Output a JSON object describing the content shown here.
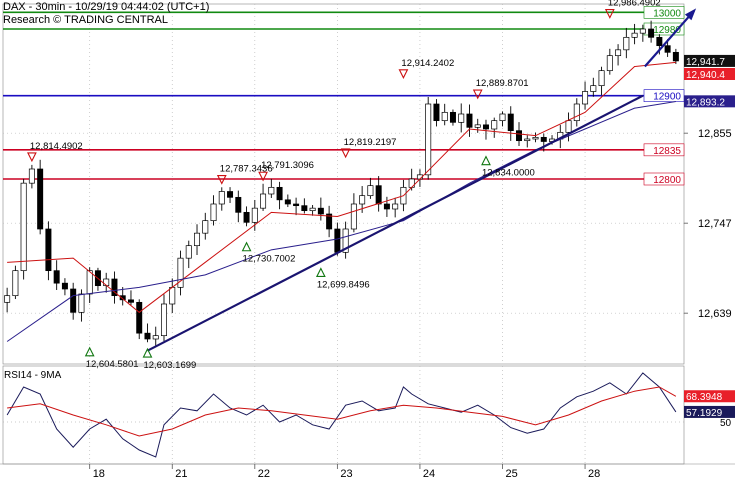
{
  "header": {
    "title": "DAX - 30min - 10/29/19 04:44:02 (UTC+1)",
    "subtitle": "Research © TRADING CENTRAL"
  },
  "colors": {
    "price": "#000000",
    "ma_fast": "#cc1111",
    "ma_slow": "#2a1f8c",
    "trendline": "#1a1470",
    "arrow": "#1a1a90",
    "support_resistance_red": "#cc0022",
    "pivot_blue": "#1a0cc2",
    "target_green": "#118a11",
    "rsi": "#1a1a5a",
    "rsi_ma": "#cc1111",
    "up_marker": "#117711",
    "down_marker": "#cc1111"
  },
  "chart_data": [
    {
      "type": "candlestick",
      "ylim": [
        12578,
        13010
      ],
      "yticks": [
        12639,
        12747,
        12855
      ],
      "x_tick_labels": [
        "18",
        "21",
        "22",
        "23",
        "24",
        "25",
        "28"
      ],
      "x_tick_bars": [
        10,
        20,
        30,
        40,
        50,
        60,
        70
      ],
      "n_bars": 82,
      "anchors": [
        [
          0,
          12660
        ],
        [
          1,
          12690
        ],
        [
          2,
          12795
        ],
        [
          3,
          12812
        ],
        [
          4,
          12740
        ],
        [
          5,
          12690
        ],
        [
          6,
          12675
        ],
        [
          7,
          12668
        ],
        [
          8,
          12640
        ],
        [
          9,
          12662
        ],
        [
          10,
          12690
        ],
        [
          11,
          12672
        ],
        [
          12,
          12680
        ],
        [
          13,
          12660
        ],
        [
          14,
          12655
        ],
        [
          15,
          12652
        ],
        [
          16,
          12615
        ],
        [
          17,
          12608
        ],
        [
          18,
          12612
        ],
        [
          19,
          12650
        ],
        [
          20,
          12670
        ],
        [
          21,
          12705
        ],
        [
          22,
          12720
        ],
        [
          23,
          12735
        ],
        [
          24,
          12750
        ],
        [
          25,
          12770
        ],
        [
          26,
          12785
        ],
        [
          27,
          12778
        ],
        [
          28,
          12760
        ],
        [
          29,
          12748
        ],
        [
          30,
          12765
        ],
        [
          31,
          12782
        ],
        [
          32,
          12790
        ],
        [
          33,
          12775
        ],
        [
          34,
          12770
        ],
        [
          35,
          12768
        ],
        [
          36,
          12762
        ],
        [
          37,
          12765
        ],
        [
          38,
          12758
        ],
        [
          39,
          12740
        ],
        [
          40,
          12712
        ],
        [
          41,
          12740
        ],
        [
          42,
          12770
        ],
        [
          43,
          12780
        ],
        [
          44,
          12792
        ],
        [
          45,
          12770
        ],
        [
          46,
          12764
        ],
        [
          47,
          12770
        ],
        [
          48,
          12790
        ],
        [
          49,
          12800
        ],
        [
          50,
          12805
        ],
        [
          51,
          12890
        ],
        [
          52,
          12870
        ],
        [
          53,
          12880
        ],
        [
          54,
          12868
        ],
        [
          55,
          12878
        ],
        [
          56,
          12862
        ],
        [
          57,
          12865
        ],
        [
          58,
          12860
        ],
        [
          59,
          12870
        ],
        [
          60,
          12878
        ],
        [
          61,
          12858
        ],
        [
          62,
          12846
        ],
        [
          63,
          12848
        ],
        [
          64,
          12850
        ],
        [
          65,
          12845
        ],
        [
          66,
          12848
        ],
        [
          67,
          12856
        ],
        [
          68,
          12870
        ],
        [
          69,
          12890
        ],
        [
          70,
          12905
        ],
        [
          71,
          12912
        ],
        [
          72,
          12930
        ],
        [
          73,
          12948
        ],
        [
          74,
          12955
        ],
        [
          75,
          12970
        ],
        [
          76,
          12975
        ],
        [
          77,
          12980
        ],
        [
          78,
          12970
        ],
        [
          79,
          12960
        ],
        [
          80,
          12952
        ],
        [
          81,
          12941.7
        ]
      ],
      "moving_averages": [
        {
          "name": "fast",
          "points": [
            [
              0,
              12700
            ],
            [
              8,
              12705
            ],
            [
              16,
              12640
            ],
            [
              24,
              12700
            ],
            [
              32,
              12760
            ],
            [
              40,
              12755
            ],
            [
              48,
              12780
            ],
            [
              56,
              12860
            ],
            [
              64,
              12852
            ],
            [
              70,
              12880
            ],
            [
              76,
              12935
            ],
            [
              81,
              12940
            ]
          ]
        },
        {
          "name": "slow",
          "points": [
            [
              0,
              12605
            ],
            [
              8,
              12660
            ],
            [
              16,
              12670
            ],
            [
              24,
              12685
            ],
            [
              32,
              12715
            ],
            [
              40,
              12728
            ],
            [
              48,
              12750
            ],
            [
              56,
              12795
            ],
            [
              64,
              12835
            ],
            [
              70,
              12860
            ],
            [
              76,
              12885
            ],
            [
              81,
              12893
            ]
          ]
        }
      ],
      "horizontal_levels": [
        {
          "value": 13000,
          "label": "13000",
          "kind": "target"
        },
        {
          "value": 12980,
          "label": "12980",
          "kind": "target"
        },
        {
          "value": 12900,
          "label": "12900",
          "kind": "pivot"
        },
        {
          "value": 12835,
          "label": "12835",
          "kind": "support"
        },
        {
          "value": 12800,
          "label": "12800",
          "kind": "support"
        }
      ],
      "trendlines": [
        {
          "from": [
            17,
            12594
          ],
          "to": [
            77,
            12900
          ]
        }
      ],
      "forecast_arrow": {
        "from": [
          77,
          12935
        ],
        "to": [
          82,
          13002
        ]
      },
      "right_axis_labels": [
        {
          "value": 12941.7,
          "label": "12,941.7",
          "style": "black"
        },
        {
          "value": 12940.4,
          "label": "12,940.4",
          "style": "red"
        },
        {
          "value": 12893.2,
          "label": "12,893.2",
          "style": "blue"
        }
      ],
      "swing_annotations": [
        {
          "bar": 3,
          "value": 12814.4902,
          "label": "12,814.4902",
          "kind": "high"
        },
        {
          "bar": 26,
          "value": 12787.3436,
          "label": "12,787.3436",
          "kind": "high"
        },
        {
          "bar": 31,
          "value": 12791.3096,
          "label": "12,791.3096",
          "kind": "high"
        },
        {
          "bar": 41,
          "value": 12819.2197,
          "label": "12,819.2197",
          "kind": "high"
        },
        {
          "bar": 48,
          "value": 12914.2402,
          "label": "12,914.2402",
          "kind": "high"
        },
        {
          "bar": 57,
          "value": 12889.8701,
          "label": "12,889.8701",
          "kind": "high"
        },
        {
          "bar": 73,
          "value": 12986.4902,
          "label": "12,986.4902",
          "kind": "high"
        },
        {
          "bar": 29,
          "value": 12730.7002,
          "label": "12,730.7002",
          "kind": "low"
        },
        {
          "bar": 38,
          "value": 12699.8496,
          "label": "12,699.8496",
          "kind": "low"
        },
        {
          "bar": 58,
          "value": 12834.0,
          "label": "12,834.0000",
          "kind": "low"
        },
        {
          "bar": 10,
          "value": 12604.5801,
          "label": "12,604.5801",
          "kind": "low"
        },
        {
          "bar": 17,
          "value": 12603.1699,
          "label": "12,603.1699",
          "kind": "low"
        }
      ]
    },
    {
      "type": "line",
      "title": "RSI14 - 9MA",
      "ylim": [
        20,
        90
      ],
      "yticks": [
        50
      ],
      "right_axis_labels": [
        {
          "value": 68.3948,
          "label": "68.3948",
          "style": "red"
        },
        {
          "value": 57.1929,
          "label": "57.1929",
          "style": "navy"
        }
      ],
      "series": [
        {
          "points": [
            [
              0,
              55
            ],
            [
              2,
              75
            ],
            [
              4,
              70
            ],
            [
              6,
              45
            ],
            [
              8,
              32
            ],
            [
              10,
              45
            ],
            [
              12,
              52
            ],
            [
              14,
              38
            ],
            [
              16,
              30
            ],
            [
              18,
              25
            ],
            [
              19,
              48
            ],
            [
              21,
              60
            ],
            [
              23,
              58
            ],
            [
              25,
              70
            ],
            [
              27,
              60
            ],
            [
              29,
              55
            ],
            [
              31,
              62
            ],
            [
              33,
              50
            ],
            [
              35,
              55
            ],
            [
              37,
              48
            ],
            [
              39,
              45
            ],
            [
              41,
              62
            ],
            [
              43,
              65
            ],
            [
              45,
              58
            ],
            [
              47,
              60
            ],
            [
              48,
              75
            ],
            [
              49,
              70
            ],
            [
              51,
              63
            ],
            [
              53,
              60
            ],
            [
              55,
              57
            ],
            [
              57,
              62
            ],
            [
              59,
              55
            ],
            [
              61,
              46
            ],
            [
              63,
              42
            ],
            [
              65,
              45
            ],
            [
              67,
              60
            ],
            [
              69,
              68
            ],
            [
              71,
              72
            ],
            [
              73,
              78
            ],
            [
              75,
              70
            ],
            [
              77,
              85
            ],
            [
              79,
              75
            ],
            [
              81,
              57.19
            ]
          ]
        },
        {
          "points": [
            [
              0,
              60
            ],
            [
              4,
              63
            ],
            [
              8,
              55
            ],
            [
              12,
              48
            ],
            [
              16,
              40
            ],
            [
              20,
              45
            ],
            [
              24,
              55
            ],
            [
              28,
              60
            ],
            [
              32,
              58
            ],
            [
              36,
              55
            ],
            [
              40,
              52
            ],
            [
              44,
              58
            ],
            [
              48,
              62
            ],
            [
              52,
              60
            ],
            [
              56,
              57
            ],
            [
              60,
              54
            ],
            [
              64,
              48
            ],
            [
              68,
              55
            ],
            [
              72,
              65
            ],
            [
              76,
              72
            ],
            [
              79,
              75
            ],
            [
              81,
              68.39
            ]
          ]
        }
      ]
    }
  ]
}
